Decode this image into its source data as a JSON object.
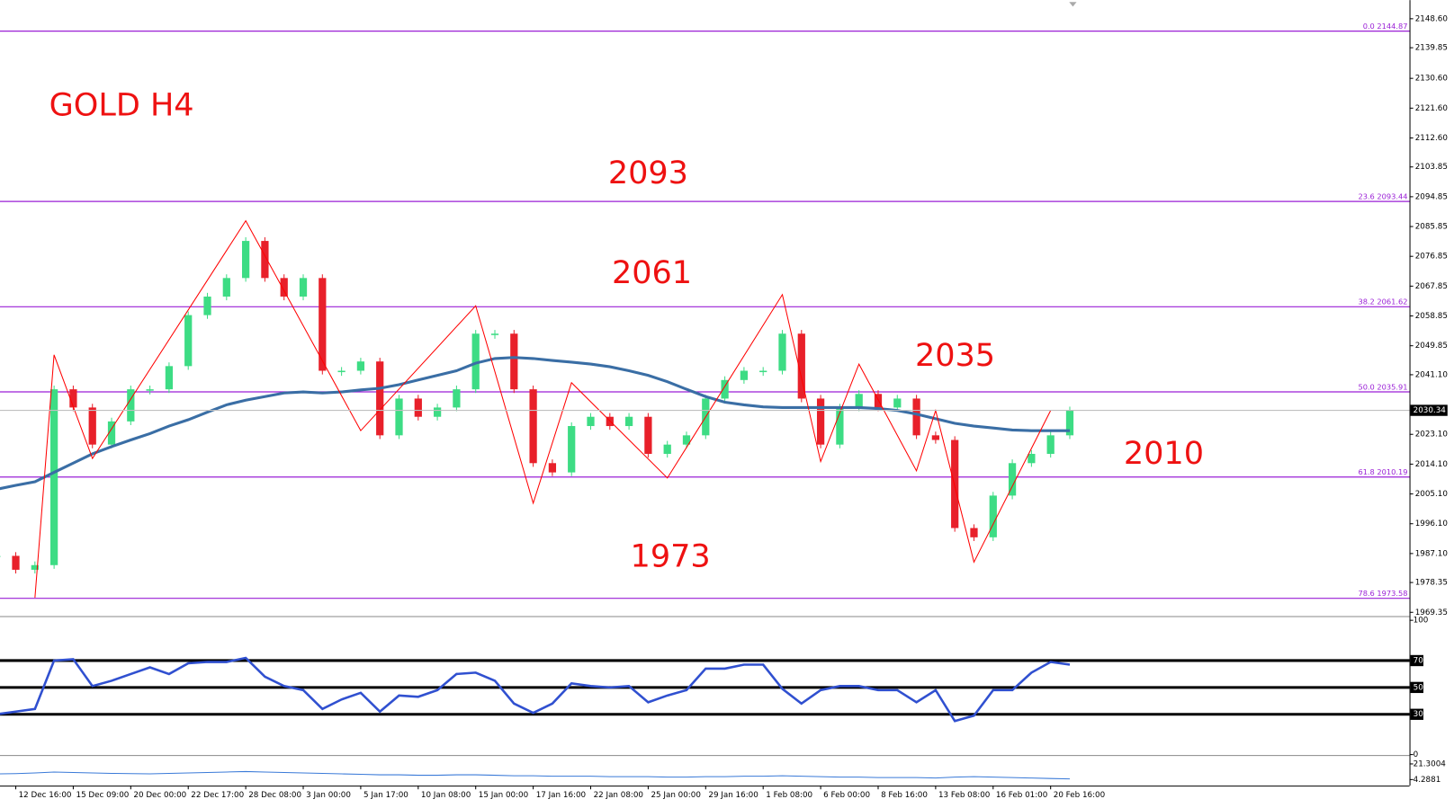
{
  "chart_data": [
    {
      "type": "candlestick",
      "title": "GOLD H4",
      "annotations": [
        "2093",
        "2061",
        "2035",
        "2010",
        "1973"
      ],
      "categories": [
        null,
        "12 Dec 16:00",
        null,
        null,
        "15 Dec 09:00",
        null,
        null,
        "20 Dec 00:00",
        null,
        null,
        "22 Dec 17:00",
        null,
        null,
        "28 Dec 08:00",
        null,
        null,
        "3 Jan 00:00",
        null,
        null,
        "5 Jan 17:00",
        null,
        null,
        "10 Jan 08:00",
        null,
        null,
        "15 Jan 00:00",
        null,
        null,
        "17 Jan 16:00",
        null,
        null,
        "22 Jan 08:00",
        null,
        null,
        "25 Jan 00:00",
        null,
        null,
        "29 Jan 16:00",
        null,
        null,
        "1 Feb 08:00",
        null,
        null,
        "6 Feb 00:00",
        null,
        null,
        "8 Feb 16:00",
        null,
        null,
        "13 Feb 08:00",
        null,
        null,
        "16 Feb 01:00",
        null,
        null,
        "20 Feb 16:00",
        null
      ],
      "up_color": "#3ddc84",
      "down_color": "#e8202a",
      "series": [
        {
          "values": [
            1986.4,
            1982.2,
            1983.6,
            2036.7,
            2031.2,
            2020.0,
            2027.0,
            2036.7,
            2036.7,
            2043.7,
            2059.1,
            2064.7,
            2070.3,
            2081.5,
            2070.3,
            2064.7,
            2070.3,
            2042.3,
            2042.3,
            2045.1,
            2022.8,
            2033.9,
            2028.4,
            2031.2,
            2036.7,
            2053.5,
            2053.5,
            2036.7,
            2014.4,
            2011.6,
            2025.6,
            2028.4,
            2025.6,
            2028.4,
            2017.2,
            2020.0,
            2022.8,
            2033.9,
            2039.5,
            2042.3,
            2042.3,
            2053.5,
            2033.9,
            2020.0,
            2031.2,
            2035.3,
            2031.2,
            2033.9,
            2022.8,
            2021.4,
            1994.8,
            1992.0,
            2004.6,
            2014.4,
            2017.2,
            2022.8,
            2030.34
          ]
        },
        {
          "color": "#3a6ea5",
          "values": [
            2006.5,
            2007.7,
            2008.8,
            2011.6,
            2014.4,
            2017.2,
            2019.4,
            2021.4,
            2023.3,
            2025.6,
            2027.5,
            2029.8,
            2032.0,
            2033.4,
            2034.5,
            2035.6,
            2035.9,
            2035.6,
            2035.9,
            2036.5,
            2037.0,
            2038.1,
            2039.5,
            2040.9,
            2042.3,
            2044.6,
            2046.0,
            2046.3,
            2046.0,
            2045.4,
            2044.9,
            2044.3,
            2043.5,
            2042.3,
            2040.9,
            2039.0,
            2036.7,
            2034.5,
            2032.8,
            2032.0,
            2031.4,
            2031.2,
            2031.2,
            2031.2,
            2031.2,
            2031.2,
            2030.9,
            2030.3,
            2029.2,
            2027.8,
            2026.4,
            2025.6,
            2025.0,
            2024.4,
            2024.2,
            2024.2,
            2024.2
          ]
        },
        {
          "color": "#ff0000",
          "x": [
            2,
            3,
            5,
            13,
            19,
            25,
            28,
            30,
            35,
            41,
            43,
            45,
            48,
            49,
            51,
            55
          ],
          "values": [
            1973.8,
            2047.1,
            2015.8,
            2087.6,
            2024.2,
            2061.9,
            2002.3,
            2038.7,
            2009.9,
            2065.3,
            2014.9,
            2044.3,
            2012.1,
            2030.3,
            1984.5,
            2030.3
          ]
        }
      ],
      "ylim": [
        1968.2,
        2153.1
      ],
      "yticks": [
        {
          "value": 2148.6,
          "label": "2148.60"
        },
        {
          "value": 2139.85,
          "label": "2139.85"
        },
        {
          "value": 2130.6,
          "label": "2130.60"
        },
        {
          "value": 2121.6,
          "label": "2121.60"
        },
        {
          "value": 2112.6,
          "label": "2112.60"
        },
        {
          "value": 2103.85,
          "label": "2103.85"
        },
        {
          "value": 2094.85,
          "label": "2094.85"
        },
        {
          "value": 2085.85,
          "label": "2085.85"
        },
        {
          "value": 2076.85,
          "label": "2076.85"
        },
        {
          "value": 2067.85,
          "label": "2067.85"
        },
        {
          "value": 2058.85,
          "label": "2058.85"
        },
        {
          "value": 2049.85,
          "label": "2049.85"
        },
        {
          "value": 2041.1,
          "label": "2041.10"
        },
        {
          "value": 2023.1,
          "label": "2023.10"
        },
        {
          "value": 2014.1,
          "label": "2014.10"
        },
        {
          "value": 2005.1,
          "label": "2005.10"
        },
        {
          "value": 1996.1,
          "label": "1996.10"
        },
        {
          "value": 1987.1,
          "label": "1987.10"
        },
        {
          "value": 1978.35,
          "label": "1978.35"
        },
        {
          "value": 1969.35,
          "label": "1969.35"
        }
      ],
      "fib_color": "#9a1fd6",
      "fib_levels": [
        {
          "value": 2144.87,
          "label": "0.0 2144.87"
        },
        {
          "value": 2093.44,
          "label": "23.6 2093.44"
        },
        {
          "value": 2061.62,
          "label": "38.2 2061.62"
        },
        {
          "value": 2035.91,
          "label": "50.0 2035.91"
        },
        {
          "value": 2010.19,
          "label": "61.8 2010.19"
        },
        {
          "value": 1973.58,
          "label": "78.6 1973.58"
        }
      ]
    },
    {
      "type": "line",
      "color": "#3050d0",
      "ylim": [
        0,
        100
      ],
      "yticks": [
        100,
        70,
        50,
        30,
        0
      ],
      "values": [
        30,
        32,
        34,
        70,
        71,
        51,
        55,
        60,
        65,
        60,
        68,
        69,
        69,
        72,
        58,
        51,
        48,
        34,
        41,
        46,
        32,
        44,
        43,
        48,
        60,
        61,
        55,
        38,
        31,
        38,
        53,
        51,
        50,
        51,
        39,
        44,
        48,
        64,
        64,
        67,
        67,
        49,
        38,
        48,
        51,
        51,
        48,
        48,
        39,
        48,
        25,
        29,
        48,
        48,
        61,
        69,
        67
      ]
    },
    {
      "type": "line",
      "color": "#3a7ad8",
      "ylim": [
        -2.3,
        27.9
      ],
      "yticks": [
        21.3004,
        4.2881
      ],
      "values": [
        10.5,
        10.8,
        11.5,
        12.5,
        12.0,
        11.5,
        11.0,
        10.8,
        10.5,
        11.0,
        11.5,
        12.0,
        12.5,
        13.0,
        12.5,
        12.0,
        11.5,
        11.0,
        10.5,
        10.0,
        9.5,
        9.5,
        9.0,
        9.0,
        9.5,
        9.5,
        9.0,
        8.5,
        8.5,
        8.0,
        8.0,
        8.0,
        7.5,
        7.5,
        7.5,
        7.0,
        7.0,
        7.5,
        7.5,
        8.0,
        8.0,
        8.5,
        8.0,
        7.5,
        7.0,
        7.0,
        6.5,
        6.5,
        6.5,
        6.0,
        7.0,
        7.5,
        7.0,
        6.5,
        6.0,
        5.5,
        5.0
      ]
    }
  ]
}
